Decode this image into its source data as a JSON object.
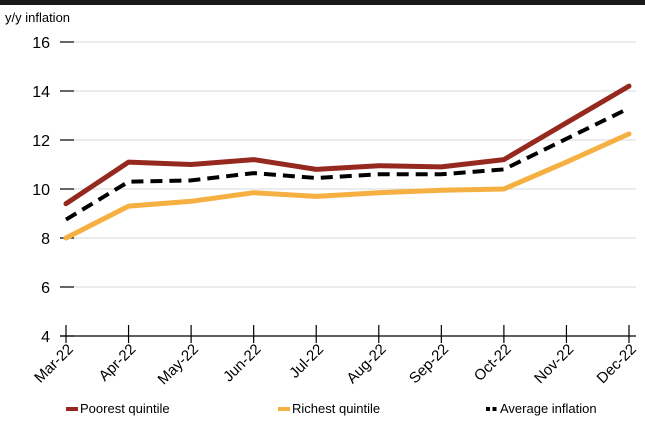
{
  "chart_data": {
    "type": "line",
    "ylabel": "y/y inflation",
    "ylim": [
      4,
      16
    ],
    "yticks": [
      4,
      6,
      8,
      10,
      12,
      14,
      16
    ],
    "grid": true,
    "legend_position": "bottom",
    "categories": [
      "Mar-22",
      "Apr-22",
      "May-22",
      "Jun-22",
      "Jul-22",
      "Aug-22",
      "Sep-22",
      "Oct-22",
      "Nov-22",
      "Dec-22"
    ],
    "series": [
      {
        "name": "Poorest quintile",
        "color": "#96291f",
        "dashed": false,
        "values": [
          9.4,
          11.1,
          11.0,
          11.2,
          10.8,
          10.95,
          10.9,
          11.2,
          12.7,
          14.2
        ]
      },
      {
        "name": "Richest quintile",
        "color": "#f5b041",
        "dashed": false,
        "values": [
          8.0,
          9.3,
          9.5,
          9.85,
          9.7,
          9.85,
          9.95,
          10.0,
          11.1,
          12.25
        ]
      },
      {
        "name": "Average inflation",
        "color": "#000000",
        "dashed": true,
        "values": [
          8.75,
          10.3,
          10.35,
          10.65,
          10.45,
          10.6,
          10.6,
          10.8,
          12.05,
          13.3
        ]
      }
    ]
  }
}
